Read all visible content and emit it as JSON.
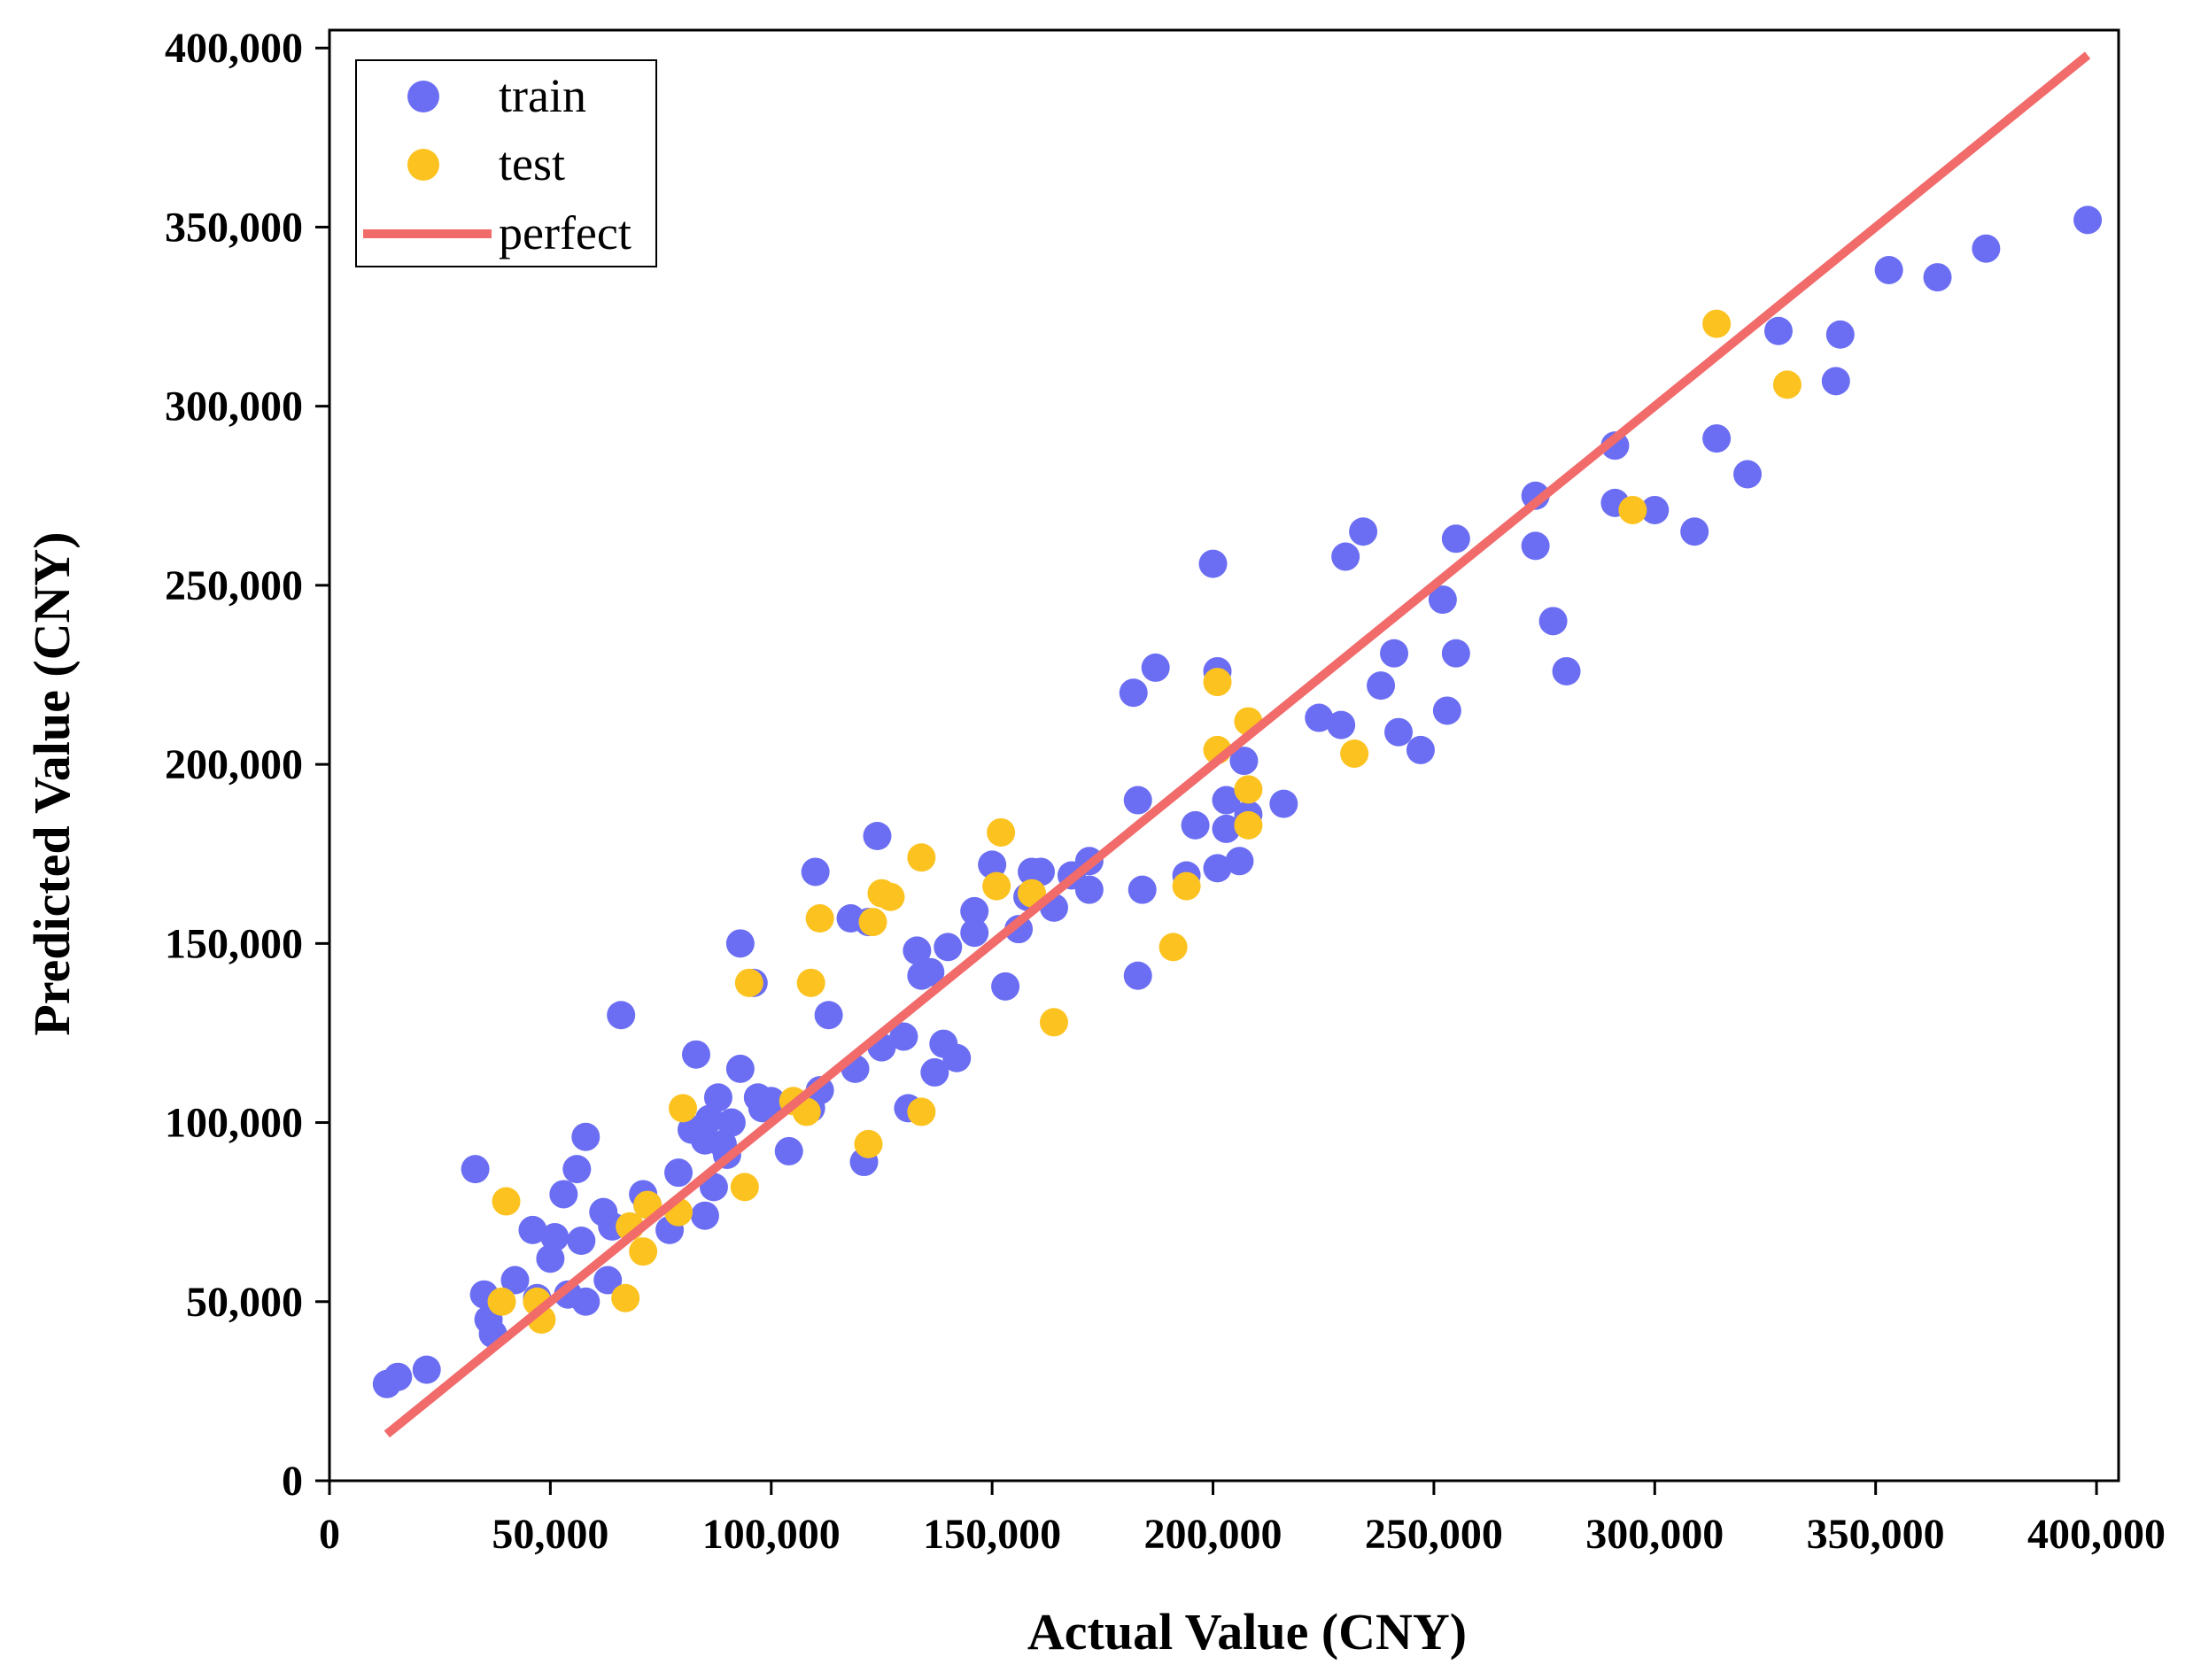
{
  "chart_data": {
    "type": "scatter",
    "title": "",
    "xlabel": "Actual Value (CNY)",
    "ylabel": "Predicted Value (CNY)",
    "xlim": [
      0,
      405000
    ],
    "ylim": [
      0,
      405000
    ],
    "xticks": [
      0,
      50000,
      100000,
      150000,
      200000,
      250000,
      300000,
      350000,
      400000
    ],
    "yticks": [
      0,
      50000,
      100000,
      150000,
      200000,
      250000,
      300000,
      350000,
      400000
    ],
    "xtick_labels": [
      "0",
      "50,000",
      "100,000",
      "150,000",
      "200,000",
      "250,000",
      "300,000",
      "350,000",
      "400,000"
    ],
    "ytick_labels": [
      "0",
      "50,000",
      "100,000",
      "150,000",
      "200,000",
      "250,000",
      "300,000",
      "350,000",
      "400,000"
    ],
    "grid": false,
    "legend_position": "top-left",
    "legend": [
      "train",
      "test",
      "perfect"
    ],
    "series": [
      {
        "name": "train",
        "type": "scatter",
        "color": "#6b6ef2",
        "points": [
          [
            13000,
            27000
          ],
          [
            15500,
            29000
          ],
          [
            22000,
            31000
          ],
          [
            33000,
            87000
          ],
          [
            35000,
            52000
          ],
          [
            36000,
            45000
          ],
          [
            37000,
            41000
          ],
          [
            42000,
            56000
          ],
          [
            46000,
            70000
          ],
          [
            47000,
            51000
          ],
          [
            50000,
            62000
          ],
          [
            51000,
            68000
          ],
          [
            53000,
            80000
          ],
          [
            54000,
            52000
          ],
          [
            56000,
            87000
          ],
          [
            57000,
            67000
          ],
          [
            58000,
            96000
          ],
          [
            58000,
            50000
          ],
          [
            62000,
            75000
          ],
          [
            63000,
            56000
          ],
          [
            64000,
            71000
          ],
          [
            66000,
            130000
          ],
          [
            71000,
            80000
          ],
          [
            72000,
            77000
          ],
          [
            77000,
            70000
          ],
          [
            79000,
            86000
          ],
          [
            82000,
            98000
          ],
          [
            83000,
            119000
          ],
          [
            85000,
            74000
          ],
          [
            85000,
            95000
          ],
          [
            86000,
            101000
          ],
          [
            87000,
            82000
          ],
          [
            88000,
            107000
          ],
          [
            89000,
            94000
          ],
          [
            90000,
            91000
          ],
          [
            91000,
            100000
          ],
          [
            93000,
            115000
          ],
          [
            93000,
            150000
          ],
          [
            96000,
            139000
          ],
          [
            97000,
            107000
          ],
          [
            98000,
            104000
          ],
          [
            100000,
            106000
          ],
          [
            104000,
            92000
          ],
          [
            109000,
            104000
          ],
          [
            110000,
            170000
          ],
          [
            111000,
            109000
          ],
          [
            113000,
            130000
          ],
          [
            118000,
            157000
          ],
          [
            119000,
            115000
          ],
          [
            121000,
            89000
          ],
          [
            122000,
            156000
          ],
          [
            124000,
            180000
          ],
          [
            125000,
            121000
          ],
          [
            130000,
            124000
          ],
          [
            131000,
            104000
          ],
          [
            133000,
            148000
          ],
          [
            134000,
            141000
          ],
          [
            136000,
            142000
          ],
          [
            137000,
            114000
          ],
          [
            139000,
            122000
          ],
          [
            140000,
            149000
          ],
          [
            142000,
            118000
          ],
          [
            146000,
            159000
          ],
          [
            146000,
            153000
          ],
          [
            150000,
            172000
          ],
          [
            153000,
            138000
          ],
          [
            156000,
            154000
          ],
          [
            158000,
            163000
          ],
          [
            159000,
            170000
          ],
          [
            161000,
            170000
          ],
          [
            164000,
            160000
          ],
          [
            168000,
            169000
          ],
          [
            172000,
            173000
          ],
          [
            172000,
            165000
          ],
          [
            182000,
            220000
          ],
          [
            183000,
            190000
          ],
          [
            183000,
            141000
          ],
          [
            184000,
            165000
          ],
          [
            187000,
            227000
          ],
          [
            194000,
            169000
          ],
          [
            196000,
            183000
          ],
          [
            200000,
            256000
          ],
          [
            201000,
            226000
          ],
          [
            201000,
            171000
          ],
          [
            203000,
            190000
          ],
          [
            203000,
            182000
          ],
          [
            206000,
            173000
          ],
          [
            207000,
            201000
          ],
          [
            208000,
            186000
          ],
          [
            216000,
            189000
          ],
          [
            224000,
            213000
          ],
          [
            229000,
            211000
          ],
          [
            230000,
            258000
          ],
          [
            234000,
            265000
          ],
          [
            238000,
            222000
          ],
          [
            241000,
            231000
          ],
          [
            242000,
            209000
          ],
          [
            247000,
            204000
          ],
          [
            252000,
            246000
          ],
          [
            253000,
            215000
          ],
          [
            255000,
            263000
          ],
          [
            255000,
            231000
          ],
          [
            273000,
            275000
          ],
          [
            273000,
            261000
          ],
          [
            277000,
            240000
          ],
          [
            280000,
            226000
          ],
          [
            291000,
            273000
          ],
          [
            291000,
            289000
          ],
          [
            300000,
            271000
          ],
          [
            309000,
            265000
          ],
          [
            314000,
            291000
          ],
          [
            321000,
            281000
          ],
          [
            328000,
            321000
          ],
          [
            341000,
            307000
          ],
          [
            342000,
            320000
          ],
          [
            353000,
            338000
          ],
          [
            364000,
            336000
          ],
          [
            375000,
            344000
          ],
          [
            398000,
            352000
          ]
        ]
      },
      {
        "name": "test",
        "type": "scatter",
        "color": "#fcc21f",
        "points": [
          [
            39000,
            50000
          ],
          [
            40000,
            78000
          ],
          [
            47000,
            50000
          ],
          [
            48000,
            45000
          ],
          [
            67000,
            51000
          ],
          [
            68000,
            71000
          ],
          [
            71000,
            64000
          ],
          [
            72000,
            77000
          ],
          [
            79000,
            75000
          ],
          [
            80000,
            104000
          ],
          [
            94000,
            82000
          ],
          [
            95000,
            139000
          ],
          [
            105000,
            106000
          ],
          [
            108000,
            103000
          ],
          [
            109000,
            139000
          ],
          [
            111000,
            157000
          ],
          [
            122000,
            94000
          ],
          [
            123000,
            156000
          ],
          [
            125000,
            164000
          ],
          [
            127000,
            163000
          ],
          [
            134000,
            103000
          ],
          [
            134000,
            174000
          ],
          [
            151000,
            166000
          ],
          [
            152000,
            181000
          ],
          [
            159000,
            164000
          ],
          [
            164000,
            128000
          ],
          [
            191000,
            149000
          ],
          [
            194000,
            166000
          ],
          [
            201000,
            223000
          ],
          [
            201000,
            204000
          ],
          [
            208000,
            212000
          ],
          [
            208000,
            193000
          ],
          [
            208000,
            183000
          ],
          [
            232000,
            203000
          ],
          [
            295000,
            271000
          ],
          [
            314000,
            323000
          ],
          [
            330000,
            306000
          ]
        ]
      },
      {
        "name": "perfect",
        "type": "line",
        "color": "#f26b6b",
        "points": [
          [
            13000,
            13000
          ],
          [
            398000,
            398000
          ]
        ]
      }
    ]
  }
}
